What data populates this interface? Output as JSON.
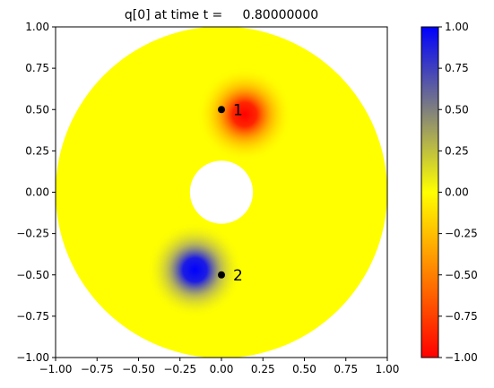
{
  "chart_data": {
    "type": "heatmap",
    "title": "q[0] at time t =     0.80000000",
    "xlabel": "",
    "ylabel": "",
    "xlim": [
      -1.0,
      1.0
    ],
    "ylim": [
      -1.0,
      1.0
    ],
    "x_ticks": [
      "−1.00",
      "−0.75",
      "−0.50",
      "−0.25",
      "0.00",
      "0.25",
      "0.50",
      "0.75",
      "1.00"
    ],
    "y_ticks": [
      "−1.00",
      "−0.75",
      "−0.50",
      "−0.25",
      "0.00",
      "0.25",
      "0.50",
      "0.75",
      "1.00"
    ],
    "grid": false,
    "domain": {
      "shape": "annulus",
      "inner_radius": 0.19,
      "outer_radius": 1.0,
      "background_value": 0.0
    },
    "features": [
      {
        "kind": "gaussian",
        "center": [
          0.14,
          0.47
        ],
        "peak_value": -1.0,
        "width": 0.09
      },
      {
        "kind": "gaussian",
        "center": [
          -0.16,
          -0.47
        ],
        "peak_value": 1.0,
        "width": 0.09
      }
    ],
    "probes": [
      {
        "label": "1",
        "x": 0.0,
        "y": 0.5
      },
      {
        "label": "2",
        "x": 0.0,
        "y": -0.5
      }
    ],
    "colorbar": {
      "min": -1.0,
      "max": 1.0,
      "ticks": [
        "1.00",
        "0.75",
        "0.50",
        "0.25",
        "0.00",
        "−0.25",
        "−0.50",
        "−0.75",
        "−1.00"
      ],
      "colors": {
        "low": "#ff0000",
        "mid": "#ffff00",
        "high": "#0000ff"
      }
    }
  }
}
